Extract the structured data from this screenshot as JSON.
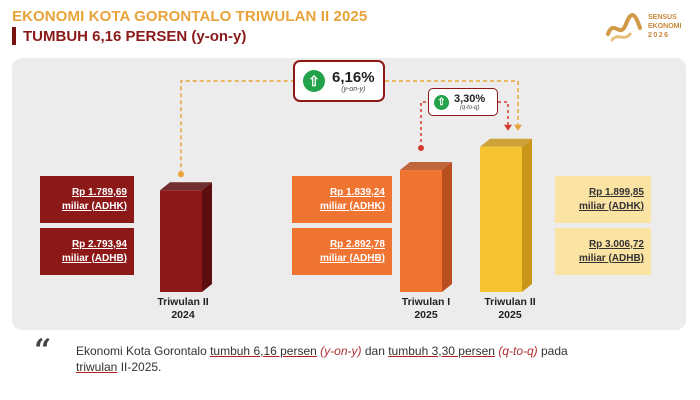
{
  "header": {
    "title": "EKONOMI KOTA GORONTALO TRIWULAN II 2025",
    "subtitle": "TUMBUH 6,16 PERSEN (y-on-y)"
  },
  "logo": {
    "line1": "SENSUS",
    "line2": "EKONOMI",
    "line3": "2026"
  },
  "growth": {
    "yoy": {
      "value": "6,16%",
      "label": "(y-on-y)"
    },
    "qtq": {
      "value": "3,30%",
      "label": "(q-to-q)"
    }
  },
  "chart_data": {
    "type": "bar",
    "categories": [
      "Triwulan II 2024",
      "Triwulan I 2025",
      "Triwulan II 2025"
    ],
    "series": [
      {
        "name": "ADHK",
        "values": [
          1789.69,
          1839.24,
          1899.85
        ]
      },
      {
        "name": "ADHB",
        "values": [
          2793.94,
          2892.78,
          3006.72
        ]
      }
    ],
    "bar_colors": [
      "#8c1818",
      "#ef7432",
      "#f6c331"
    ],
    "bar_shades": [
      "#5c0d0d",
      "#b94f1e",
      "#c9961a"
    ]
  },
  "bars": [
    {
      "cat_line1": "Triwulan II",
      "cat_line2": "2024",
      "adhk_line1": "Rp 1.789,69",
      "adhk_line2": "miliar (ADHK)",
      "adhb_line1": "Rp 2.793,94",
      "adhb_line2": "miliar (ADHB)"
    },
    {
      "cat_line1": "Triwulan I",
      "cat_line2": "2025",
      "adhk_line1": "Rp 1.839,24",
      "adhk_line2": "miliar (ADHK)",
      "adhb_line1": "Rp 2.892,78",
      "adhb_line2": "miliar (ADHB)"
    },
    {
      "cat_line1": "Triwulan II",
      "cat_line2": "2025",
      "adhk_line1": "Rp 1.899,85",
      "adhk_line2": "miliar (ADHK)",
      "adhb_line1": "Rp 3.006,72",
      "adhb_line2": "miliar (ADHB)"
    }
  ],
  "quote": {
    "p1": "Ekonomi Kota Gorontalo ",
    "u1": "tumbuh 6,16 persen",
    "p2": " ",
    "i1": "(y-on-y)",
    "p3": " dan ",
    "u2": "tumbuh 3,30 persen",
    "p4": " ",
    "i2": "(q-to-q)",
    "p5": " pada",
    "u3": "triwulan",
    "p6": " II-2025."
  }
}
